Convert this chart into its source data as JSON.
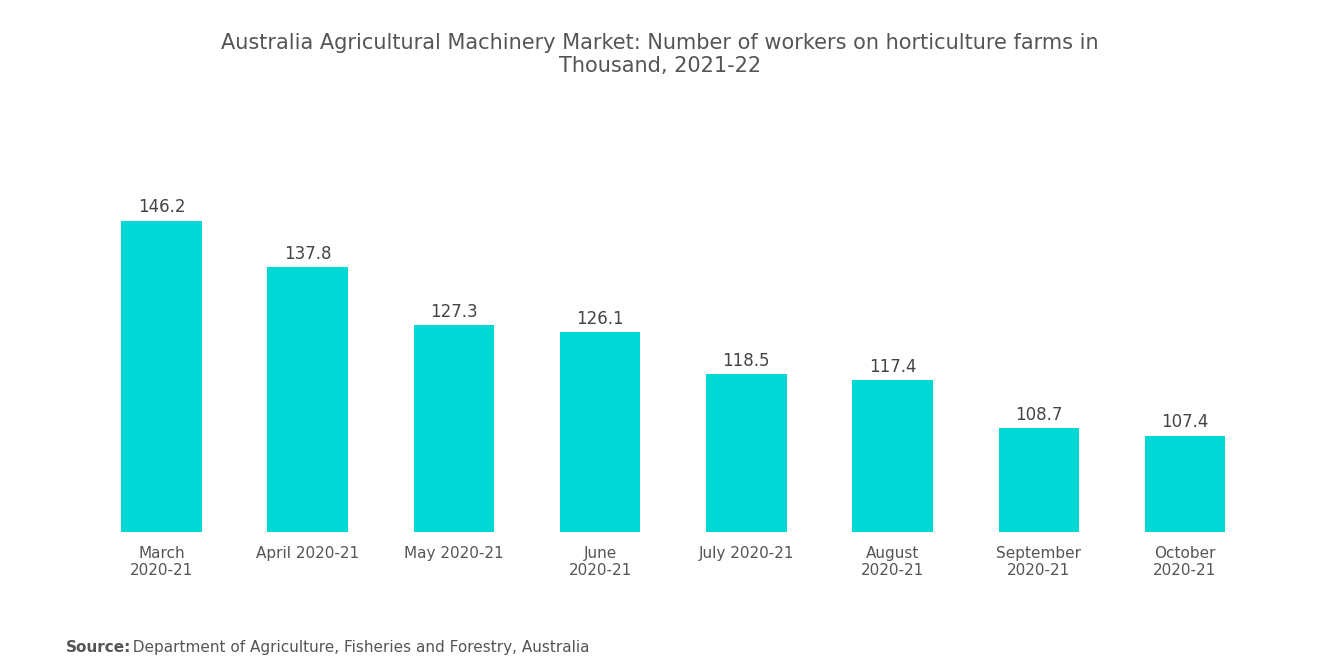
{
  "title": "Australia Agricultural Machinery Market: Number of workers on horticulture farms in\nThousand, 2021-22",
  "categories": [
    "March\n2020-21",
    "April 2020-21",
    "May 2020-21",
    "June\n2020-21",
    "July 2020-21",
    "August\n2020-21",
    "September\n2020-21",
    "October\n2020-21"
  ],
  "values": [
    146.2,
    137.8,
    127.3,
    126.1,
    118.5,
    117.4,
    108.7,
    107.4
  ],
  "bar_color": "#00D8D6",
  "title_color": "#555555",
  "label_color": "#444444",
  "tick_color": "#555555",
  "source_bold": "Source:",
  "source_rest": "  Department of Agriculture, Fisheries and Forestry, Australia",
  "background_color": "#ffffff",
  "ylim_min": 90,
  "ylim_max": 162,
  "title_fontsize": 15,
  "label_fontsize": 12,
  "tick_fontsize": 11,
  "source_fontsize": 11,
  "bar_width": 0.55
}
